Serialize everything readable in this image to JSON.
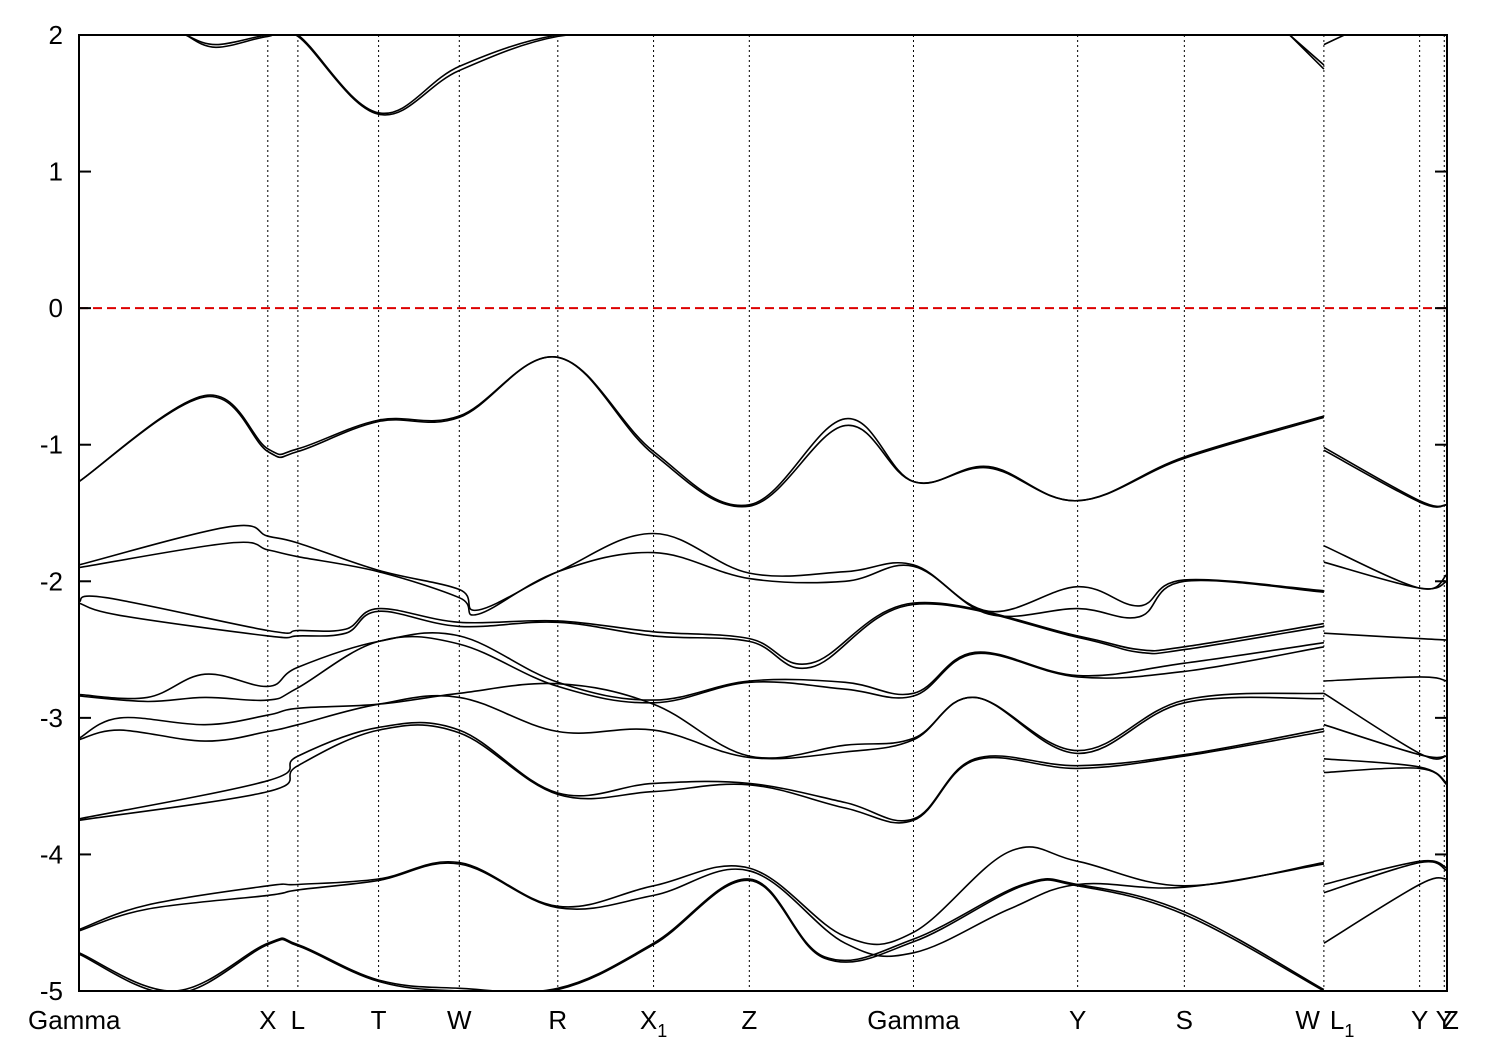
{
  "chart_data": {
    "type": "line",
    "title": "",
    "xlabel": "",
    "ylabel": "",
    "ylim": [
      -5,
      2
    ],
    "yticks": [
      -5,
      -4,
      -3,
      -2,
      -1,
      0,
      1,
      2
    ],
    "xlim": [
      0,
      10.0
    ],
    "grid": false,
    "fermi_level": {
      "y": 0,
      "color": "#dd0000",
      "style": "dashed"
    },
    "kpoints": [
      {
        "label": "Gamma",
        "x": 0.0
      },
      {
        "label": "X",
        "x": 1.38
      },
      {
        "label": "L",
        "x": 1.6
      },
      {
        "label": "T",
        "x": 2.19
      },
      {
        "label": "W",
        "x": 2.78
      },
      {
        "label": "R",
        "x": 3.5
      },
      {
        "label": "X",
        "sub": "1",
        "x": 4.2
      },
      {
        "label": "Z",
        "x": 4.9
      },
      {
        "label": "Gamma",
        "x": 6.1
      },
      {
        "label": "Y",
        "x": 7.3
      },
      {
        "label": "S",
        "x": 8.08
      },
      {
        "label": "W",
        "x": 9.1
      },
      {
        "label": "L",
        "sub": "1",
        "x": 9.1
      },
      {
        "label": "Y",
        "x": 9.8
      },
      {
        "label": "Y",
        "x": 9.98
      },
      {
        "label": "Z",
        "x": 10.0
      }
    ],
    "series": [
      {
        "x": [
          0,
          0.92,
          1.38,
          1.6,
          2.19,
          2.78,
          3.5,
          4.2,
          4.9,
          5.6,
          6.1,
          6.65,
          7.3,
          8.08,
          9.1
        ],
        "y": [
          -1.27,
          -0.64,
          -1.03,
          -1.03,
          -0.82,
          -0.79,
          -0.36,
          -1.05,
          -1.44,
          -0.81,
          -1.27,
          -1.16,
          -1.41,
          -1.09,
          -0.79
        ]
      },
      {
        "x": [
          0,
          0.92,
          1.38,
          1.6,
          2.19,
          2.78,
          3.5,
          4.2,
          4.9,
          5.6,
          6.1,
          6.65,
          7.3,
          8.08,
          9.1
        ],
        "y": [
          -1.27,
          -0.65,
          -1.05,
          -1.05,
          -0.83,
          -0.8,
          -0.36,
          -1.07,
          -1.45,
          -0.86,
          -1.27,
          -1.17,
          -1.41,
          -1.1,
          -0.8
        ]
      },
      {
        "x": [
          9.1,
          9.8,
          10.0
        ],
        "y": [
          -1.02,
          -1.41,
          -1.44
        ]
      },
      {
        "x": [
          9.1,
          9.8,
          10.0
        ],
        "y": [
          -1.04,
          -1.42,
          -1.44
        ]
      },
      {
        "x": [
          0,
          1.1,
          1.38,
          1.6,
          2.19,
          2.78,
          2.92,
          3.5,
          4.2,
          4.9,
          5.6,
          6.1,
          6.65,
          7.3,
          7.75,
          8.08,
          9.1
        ],
        "y": [
          -1.88,
          -1.6,
          -1.67,
          -1.72,
          -1.92,
          -2.06,
          -2.21,
          -1.93,
          -1.65,
          -1.94,
          -1.93,
          -1.88,
          -2.22,
          -2.04,
          -2.18,
          -1.99,
          -2.07
        ]
      },
      {
        "x": [
          0,
          1.1,
          1.38,
          1.6,
          2.19,
          2.78,
          2.92,
          3.5,
          4.2,
          4.9,
          5.6,
          6.1,
          6.65,
          7.3,
          7.75,
          8.08,
          9.1
        ],
        "y": [
          -1.9,
          -1.72,
          -1.77,
          -1.82,
          -1.93,
          -2.12,
          -2.24,
          -1.93,
          -1.79,
          -1.98,
          -2.0,
          -1.89,
          -2.24,
          -2.2,
          -2.26,
          -2.0,
          -2.08
        ]
      },
      {
        "x": [
          9.1,
          9.8,
          10.0
        ],
        "y": [
          -1.74,
          -2.05,
          -1.95
        ]
      },
      {
        "x": [
          9.1,
          9.8,
          10.0
        ],
        "y": [
          -1.86,
          -2.05,
          -2.0
        ]
      },
      {
        "x": [
          0,
          0.2,
          1.38,
          1.6,
          1.95,
          2.19,
          2.78,
          3.5,
          4.2,
          4.9,
          5.35,
          6.1,
          7.3,
          7.75,
          8.08,
          9.1
        ],
        "y": [
          -2.15,
          -2.12,
          -2.36,
          -2.36,
          -2.35,
          -2.2,
          -2.3,
          -2.29,
          -2.37,
          -2.42,
          -2.6,
          -2.16,
          -2.4,
          -2.5,
          -2.48,
          -2.31
        ]
      },
      {
        "x": [
          0,
          0.3,
          1.38,
          1.6,
          1.95,
          2.19,
          2.78,
          3.5,
          4.2,
          4.9,
          5.35,
          6.1,
          7.3,
          7.75,
          8.08,
          9.1
        ],
        "y": [
          -2.16,
          -2.25,
          -2.4,
          -2.4,
          -2.38,
          -2.22,
          -2.33,
          -2.3,
          -2.4,
          -2.44,
          -2.63,
          -2.17,
          -2.41,
          -2.52,
          -2.5,
          -2.33
        ]
      },
      {
        "x": [
          9.1,
          9.8,
          10.0
        ],
        "y": [
          -2.38,
          -2.42,
          -2.43
        ]
      },
      {
        "x": [
          0,
          0.5,
          0.92,
          1.38,
          1.6,
          2.19,
          2.78,
          3.5,
          4.2,
          4.9,
          5.6,
          6.1,
          6.55,
          7.3,
          8.08,
          9.1
        ],
        "y": [
          -2.83,
          -2.85,
          -2.68,
          -2.77,
          -2.63,
          -2.44,
          -2.4,
          -2.74,
          -2.87,
          -2.73,
          -2.74,
          -2.82,
          -2.52,
          -2.69,
          -2.6,
          -2.45
        ]
      },
      {
        "x": [
          0,
          0.5,
          0.92,
          1.38,
          1.6,
          2.19,
          2.78,
          3.5,
          4.2,
          4.9,
          5.6,
          6.1,
          6.55,
          7.3,
          8.08,
          9.1
        ],
        "y": [
          -2.84,
          -2.88,
          -2.85,
          -2.87,
          -2.78,
          -2.44,
          -2.46,
          -2.77,
          -2.89,
          -2.74,
          -2.79,
          -2.84,
          -2.53,
          -2.7,
          -2.66,
          -2.48
        ]
      },
      {
        "x": [
          9.1,
          9.8,
          10.0
        ],
        "y": [
          -2.73,
          -2.7,
          -2.73
        ]
      },
      {
        "x": [
          0,
          0.3,
          0.92,
          1.38,
          1.6,
          2.19,
          2.78,
          3.5,
          4.2,
          4.9,
          5.6,
          6.1,
          6.55,
          7.3,
          8.08,
          9.1
        ],
        "y": [
          -3.15,
          -3.0,
          -3.05,
          -2.98,
          -2.93,
          -2.9,
          -2.82,
          -2.75,
          -2.9,
          -3.28,
          -3.2,
          -3.15,
          -2.85,
          -3.24,
          -2.87,
          -2.82
        ]
      },
      {
        "x": [
          0,
          0.3,
          0.92,
          1.38,
          1.6,
          2.19,
          2.78,
          3.5,
          4.2,
          4.9,
          5.6,
          6.1,
          6.55,
          7.3,
          8.08,
          9.1
        ],
        "y": [
          -3.16,
          -3.09,
          -3.17,
          -3.1,
          -3.05,
          -2.9,
          -2.85,
          -3.1,
          -3.09,
          -3.29,
          -3.25,
          -3.16,
          -2.85,
          -3.26,
          -2.89,
          -2.86
        ]
      },
      {
        "x": [
          9.1,
          9.8,
          10.0
        ],
        "y": [
          -3.05,
          -3.27,
          -3.28
        ]
      },
      {
        "x": [
          9.1,
          9.8,
          10.0
        ],
        "y": [
          -2.82,
          -3.26,
          -3.28
        ]
      },
      {
        "x": [
          0,
          1.38,
          1.6,
          2.19,
          2.78,
          3.5,
          4.2,
          4.9,
          5.6,
          6.1,
          6.55,
          7.3,
          8.08,
          9.1
        ],
        "y": [
          -3.74,
          -3.46,
          -3.28,
          -3.07,
          -3.09,
          -3.55,
          -3.48,
          -3.48,
          -3.62,
          -3.74,
          -3.3,
          -3.35,
          -3.27,
          -3.08
        ]
      },
      {
        "x": [
          0,
          1.38,
          1.6,
          2.19,
          2.78,
          3.5,
          4.2,
          4.9,
          5.6,
          6.1,
          6.55,
          7.3,
          8.08,
          9.1
        ],
        "y": [
          -3.75,
          -3.54,
          -3.35,
          -3.09,
          -3.11,
          -3.56,
          -3.54,
          -3.49,
          -3.66,
          -3.75,
          -3.31,
          -3.37,
          -3.28,
          -3.1
        ]
      },
      {
        "x": [
          9.1,
          9.8,
          10.0
        ],
        "y": [
          -3.3,
          -3.36,
          -3.48
        ]
      },
      {
        "x": [
          9.1,
          9.8,
          10.0
        ],
        "y": [
          -3.4,
          -3.37,
          -3.49
        ]
      },
      {
        "x": [
          0,
          0.5,
          1.38,
          1.6,
          2.19,
          2.78,
          3.5,
          4.2,
          4.9,
          5.6,
          6.1,
          6.8,
          7.3,
          8.08,
          9.1
        ],
        "y": [
          -4.55,
          -4.37,
          -4.23,
          -4.22,
          -4.18,
          -4.06,
          -4.38,
          -4.23,
          -4.1,
          -4.6,
          -4.57,
          -3.98,
          -4.05,
          -4.23,
          -4.06
        ]
      },
      {
        "x": [
          0,
          0.5,
          1.38,
          1.6,
          2.19,
          2.78,
          3.5,
          4.2,
          4.9,
          5.6,
          6.1,
          6.8,
          7.3,
          8.08,
          9.1
        ],
        "y": [
          -4.56,
          -4.4,
          -4.3,
          -4.26,
          -4.19,
          -4.07,
          -4.39,
          -4.3,
          -4.12,
          -4.65,
          -4.72,
          -4.4,
          -4.22,
          -4.24,
          -4.07
        ]
      },
      {
        "x": [
          9.1,
          9.8,
          10.0
        ],
        "y": [
          -4.22,
          -4.05,
          -4.1
        ]
      },
      {
        "x": [
          9.1,
          9.8,
          10.0
        ],
        "y": [
          -4.28,
          -4.06,
          -4.12
        ]
      },
      {
        "x": [
          0,
          0.7,
          1.38,
          1.6,
          2.19,
          2.78,
          3.5,
          4.2,
          4.9,
          5.45,
          6.1,
          6.9,
          7.3,
          8.08,
          9.1
        ],
        "y": [
          -4.72,
          -5.0,
          -4.65,
          -4.66,
          -4.92,
          -4.98,
          -4.98,
          -4.65,
          -4.18,
          -4.75,
          -4.62,
          -4.22,
          -4.22,
          -4.42,
          -4.99
        ]
      },
      {
        "x": [
          0,
          0.7,
          1.38,
          1.6,
          2.19,
          2.78,
          3.5,
          4.2,
          4.9,
          5.45,
          6.1,
          6.9,
          7.3,
          8.08,
          9.1
        ],
        "y": [
          -4.73,
          -5.02,
          -4.66,
          -4.67,
          -4.93,
          -5.0,
          -4.99,
          -4.66,
          -4.19,
          -4.76,
          -4.64,
          -4.23,
          -4.23,
          -4.44,
          -5.0
        ]
      },
      {
        "x": [
          9.1,
          9.8,
          10.0
        ],
        "y": [
          -4.65,
          -4.22,
          -4.18
        ]
      },
      {
        "x": [
          0.78,
          1.0,
          1.38,
          1.6,
          2.19,
          2.78,
          3.5,
          4.2
        ],
        "y": [
          2.0,
          1.93,
          2.0,
          2.0,
          1.43,
          1.77,
          2.0,
          2.0
        ]
      },
      {
        "x": [
          0.78,
          1.0,
          1.38,
          1.6,
          2.19,
          2.78,
          3.5,
          4.2
        ],
        "y": [
          2.0,
          1.91,
          1.99,
          1.99,
          1.42,
          1.74,
          1.99,
          2.0
        ]
      },
      {
        "x": [
          8.85,
          9.1
        ],
        "y": [
          2.0,
          1.78
        ]
      },
      {
        "x": [
          8.85,
          9.1
        ],
        "y": [
          2.0,
          1.75
        ]
      },
      {
        "x": [
          9.1,
          9.25
        ],
        "y": [
          1.93,
          2.0
        ]
      }
    ]
  }
}
